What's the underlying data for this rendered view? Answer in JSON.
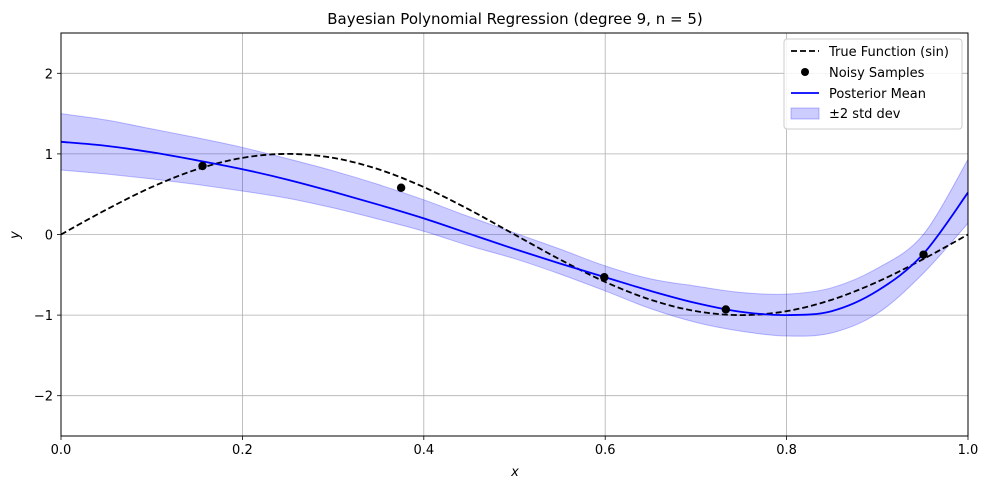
{
  "chart_data": {
    "type": "line",
    "title": "Bayesian Polynomial Regression (degree 9, n = 5)",
    "xlabel": "x",
    "ylabel": "y",
    "xlim": [
      0.0,
      1.0
    ],
    "ylim": [
      -2.5,
      2.5
    ],
    "grid": true,
    "legend_position": "top-right",
    "x_ticks": [
      0.0,
      0.2,
      0.4,
      0.6,
      0.8,
      1.0
    ],
    "x_tick_labels": [
      "0.0",
      "0.2",
      "0.4",
      "0.6",
      "0.8",
      "1.0"
    ],
    "y_ticks": [
      -2,
      -1,
      0,
      1,
      2
    ],
    "y_tick_labels": [
      "−2",
      "−1",
      "0",
      "1",
      "2"
    ],
    "series": [
      {
        "name": "True Function (sin)",
        "kind": "line",
        "style": "dashed",
        "color": "#000000",
        "x": [
          0.0,
          0.05,
          0.1,
          0.15,
          0.2,
          0.25,
          0.3,
          0.35,
          0.4,
          0.45,
          0.5,
          0.55,
          0.6,
          0.65,
          0.7,
          0.75,
          0.8,
          0.85,
          0.9,
          0.95,
          1.0
        ],
        "y": [
          0.0,
          0.309,
          0.588,
          0.809,
          0.951,
          1.0,
          0.951,
          0.809,
          0.588,
          0.309,
          0.0,
          -0.309,
          -0.588,
          -0.809,
          -0.951,
          -1.0,
          -0.951,
          -0.809,
          -0.588,
          -0.309,
          0.0
        ]
      },
      {
        "name": "Noisy Samples",
        "kind": "scatter",
        "color": "#000000",
        "x": [
          0.156,
          0.375,
          0.599,
          0.733,
          0.951
        ],
        "y": [
          0.85,
          0.58,
          -0.53,
          -0.93,
          -0.25
        ]
      },
      {
        "name": "Posterior Mean",
        "kind": "line",
        "color": "#0000ff",
        "x": [
          0.0,
          0.05,
          0.1,
          0.15,
          0.2,
          0.25,
          0.3,
          0.35,
          0.4,
          0.45,
          0.5,
          0.55,
          0.6,
          0.65,
          0.7,
          0.75,
          0.8,
          0.85,
          0.9,
          0.95,
          1.0
        ],
        "y": [
          1.15,
          1.1,
          1.02,
          0.92,
          0.81,
          0.68,
          0.53,
          0.37,
          0.2,
          0.01,
          -0.18,
          -0.36,
          -0.53,
          -0.7,
          -0.85,
          -0.96,
          -1.0,
          -0.95,
          -0.7,
          -0.25,
          0.52
        ]
      },
      {
        "name": "±2 std dev",
        "kind": "band",
        "color": "#0000ff",
        "x": [
          0.0,
          0.05,
          0.1,
          0.15,
          0.2,
          0.25,
          0.3,
          0.35,
          0.4,
          0.45,
          0.5,
          0.55,
          0.6,
          0.65,
          0.7,
          0.75,
          0.8,
          0.85,
          0.9,
          0.95,
          1.0
        ],
        "lower": [
          0.8,
          0.75,
          0.69,
          0.62,
          0.54,
          0.45,
          0.33,
          0.19,
          0.04,
          -0.14,
          -0.3,
          -0.49,
          -0.7,
          -0.92,
          -1.09,
          -1.2,
          -1.26,
          -1.22,
          -0.98,
          -0.49,
          0.14
        ],
        "upper": [
          1.5,
          1.42,
          1.31,
          1.2,
          1.08,
          0.94,
          0.79,
          0.62,
          0.43,
          0.22,
          0.02,
          -0.18,
          -0.39,
          -0.55,
          -0.64,
          -0.72,
          -0.74,
          -0.66,
          -0.42,
          -0.01,
          0.93
        ]
      }
    ]
  }
}
